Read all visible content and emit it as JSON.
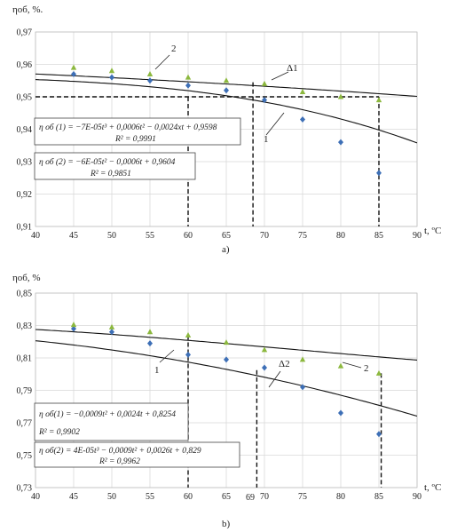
{
  "charts": [
    {
      "id": "a",
      "type": "scatter",
      "panel_label": "a)",
      "ylabel": "ηоб, %.",
      "xlabel": "t, ºC",
      "xlim": [
        40,
        90
      ],
      "ylim": [
        0.91,
        0.97
      ],
      "xticks": [
        "40",
        "45",
        "50",
        "55",
        "60",
        "65",
        "70",
        "75",
        "80",
        "85",
        "90"
      ],
      "yticks": [
        "0,97",
        "0,96",
        "0,95",
        "0,94",
        "0,93",
        "0,92",
        "0,91"
      ],
      "series": [
        {
          "name": "1",
          "marker": "diamond",
          "color": "#3d6fb6",
          "x": [
            45,
            50,
            55,
            60,
            65,
            70,
            75,
            80,
            85
          ],
          "y": [
            0.957,
            0.956,
            0.955,
            0.9535,
            0.952,
            0.949,
            0.943,
            0.936,
            0.9265
          ],
          "fit": {
            "a3": -7e-05,
            "a2": 0.0006,
            "a1": -0.0024,
            "a0": 0.9598
          },
          "equation": "η об (1) = −7E-05t³ + 0,0006t² − 0,0024xt + 0,9598",
          "r2": "R² = 0,9991"
        },
        {
          "name": "2",
          "marker": "triangle",
          "color": "#8cb83e",
          "x": [
            45,
            50,
            55,
            60,
            65,
            70,
            75,
            80,
            85
          ],
          "y": [
            0.959,
            0.958,
            0.957,
            0.956,
            0.955,
            0.954,
            0.9515,
            0.95,
            0.949
          ],
          "fit": {
            "a3": 0,
            "a2": -6e-05,
            "a1": -0.0006,
            "a0": 0.9604
          },
          "equation": "η об (2) = −6E-05t² − 0,0006t + 0,9604",
          "r2": "R² = 0,9851"
        }
      ],
      "annotations": {
        "curve1": "1",
        "curve2": "2",
        "delta": "Δ1"
      }
    },
    {
      "id": "b",
      "type": "scatter",
      "panel_label": "b)",
      "ylabel": "ηоб, %",
      "xlabel": "t, ºC",
      "xlim": [
        40,
        90
      ],
      "ylim": [
        0.73,
        0.85
      ],
      "xticks": [
        "40",
        "45",
        "50",
        "55",
        "60",
        "65",
        "70",
        "75",
        "80",
        "85",
        "90"
      ],
      "yticks": [
        "0,85",
        "0,83",
        "0,81",
        "0,79",
        "0,77",
        "0,75",
        "0,73"
      ],
      "extra_tick": "69",
      "series": [
        {
          "name": "1",
          "marker": "diamond",
          "color": "#3d6fb6",
          "x": [
            45,
            50,
            55,
            60,
            65,
            70,
            75,
            80,
            85
          ],
          "y": [
            0.828,
            0.826,
            0.819,
            0.812,
            0.809,
            0.804,
            0.792,
            0.776,
            0.763
          ],
          "fit": {
            "a3": 0,
            "a2": -0.0009,
            "a1": 0.0024,
            "a0": 0.8254
          },
          "equation": "η об(1) = −0,0009t² + 0,0024t + 0,8254",
          "r2": "R² = 0,9902"
        },
        {
          "name": "2",
          "marker": "triangle",
          "color": "#8cb83e",
          "x": [
            45,
            50,
            55,
            60,
            65,
            70,
            75,
            80,
            85
          ],
          "y": [
            0.8305,
            0.829,
            0.826,
            0.824,
            0.8195,
            0.815,
            0.809,
            0.805,
            0.8005
          ],
          "fit": {
            "a3": 4e-05,
            "a2": -0.0009,
            "a1": 0.0026,
            "a0": 0.829
          },
          "equation": "η об(2) = 4E-05t³ − 0,0009t² + 0,0026t + 0,829",
          "r2": "R² = 0,9962"
        }
      ],
      "annotations": {
        "curve1": "1",
        "curve2": "2",
        "delta": "Δ2"
      }
    }
  ]
}
